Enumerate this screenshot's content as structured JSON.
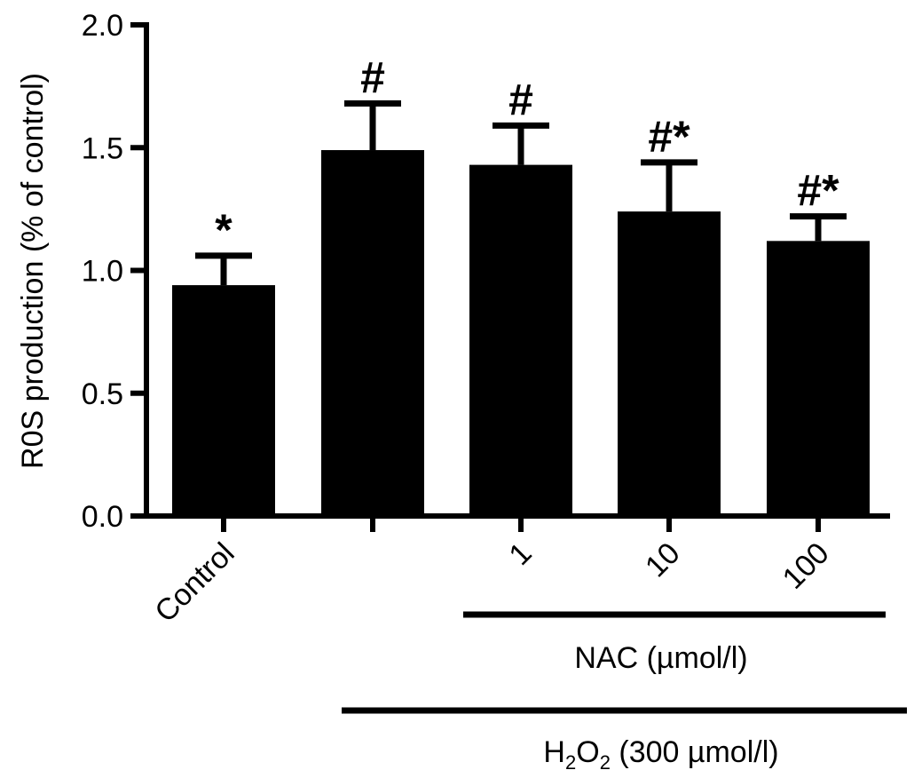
{
  "chart_data": {
    "type": "bar",
    "ylabel": "R0S production (% of control)",
    "ylim": [
      0,
      2.0
    ],
    "yticks": [
      "0.0",
      "0.5",
      "1.0",
      "1.5",
      "2.0"
    ],
    "categories": [
      "Control",
      "",
      "1",
      "10",
      "100"
    ],
    "values": [
      0.94,
      1.49,
      1.43,
      1.24,
      1.12
    ],
    "errors": [
      0.12,
      0.19,
      0.16,
      0.2,
      0.1
    ],
    "significance": [
      "*",
      "#",
      "#",
      "#*",
      "#*"
    ],
    "bar_color": "#000000",
    "grid": false,
    "legend": "none",
    "group_labels": {
      "nac": "NAC (µmol/l)",
      "h2o2_prefix": "H",
      "h2o2_sub1": "2",
      "h2o2_mid": "O",
      "h2o2_sub2": "2",
      "h2o2_suffix": " (300 µmol/l)"
    }
  }
}
